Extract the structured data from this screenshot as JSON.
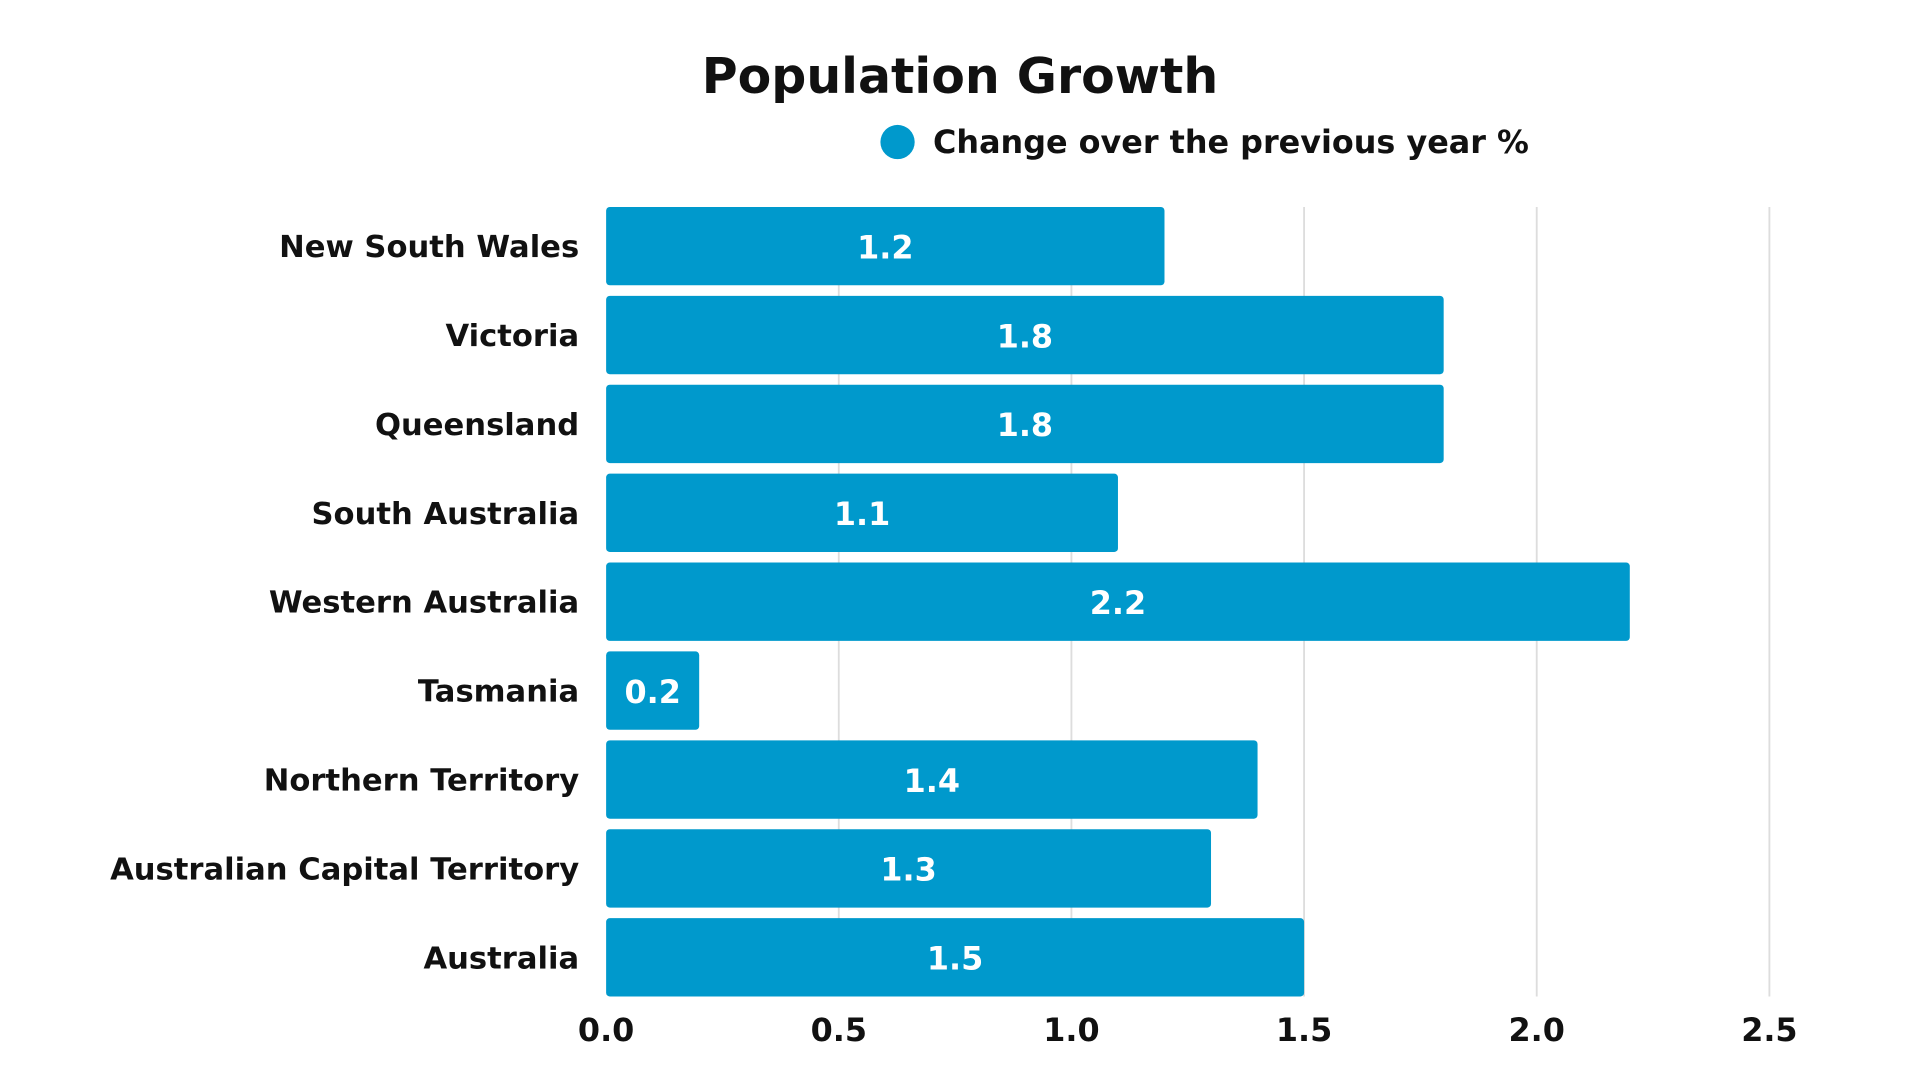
{
  "chart_data": {
    "type": "bar",
    "orientation": "horizontal",
    "title": "Population Growth",
    "legend": {
      "label": "Change over the previous year %",
      "placement": "top"
    },
    "categories": [
      "New South Wales",
      "Victoria",
      "Queensland",
      "South Australia",
      "Western Australia",
      "Tasmania",
      "Northern Territory",
      "Australian Capital Territory",
      "Australia"
    ],
    "series": [
      {
        "name": "Change over the previous year %",
        "values": [
          1.2,
          1.8,
          1.8,
          1.1,
          2.2,
          0.2,
          1.4,
          1.3,
          1.5
        ]
      }
    ],
    "value_labels": [
      "1.2",
      "1.8",
      "1.8",
      "1.1",
      "2.2",
      "0.2",
      "1.4",
      "1.3",
      "1.5"
    ],
    "xlim": [
      0,
      2.5
    ],
    "xticks": [
      "0.0",
      "0.5",
      "1.0",
      "1.5",
      "2.0",
      "2.5"
    ],
    "grid": true,
    "xlabel": "",
    "ylabel": "",
    "colors": {
      "bar": "#0099CC",
      "grid": "#dddddd",
      "text": "#111111"
    }
  }
}
